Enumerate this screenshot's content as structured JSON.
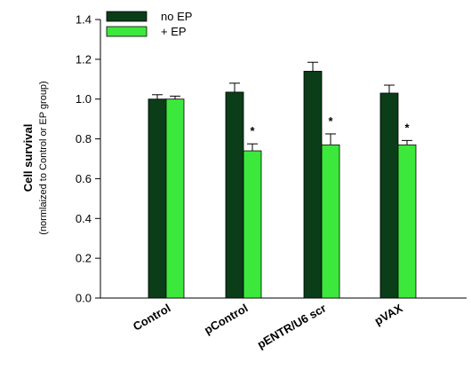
{
  "chart_data": {
    "type": "bar",
    "title": "",
    "xlabel": "",
    "ylabel": "Cell survival",
    "ylabel_sub": "(normlaized to Control or EP group)",
    "ylim": [
      0.0,
      1.4
    ],
    "yticks": [
      "0.0",
      "0.2",
      "0.4",
      "0.6",
      "0.8",
      "1.0",
      "1.2",
      "1.4"
    ],
    "categories": [
      "Control",
      "pControl",
      "pENTR/U6 scr",
      "pVAX"
    ],
    "series": [
      {
        "name": "no EP",
        "color": "#0a3d18",
        "values": [
          1.0,
          1.035,
          1.14,
          1.03
        ],
        "errors": [
          0.022,
          0.045,
          0.045,
          0.04
        ]
      },
      {
        "name": "+ EP",
        "color": "#3ce83c",
        "values": [
          1.0,
          0.74,
          0.77,
          0.77
        ],
        "errors": [
          0.015,
          0.035,
          0.055,
          0.022
        ]
      }
    ],
    "annotations": [
      {
        "series": 1,
        "category": 1,
        "text": "*"
      },
      {
        "series": 1,
        "category": 2,
        "text": "*"
      },
      {
        "series": 1,
        "category": 3,
        "text": "*"
      }
    ],
    "legend": "top-left",
    "grid": false
  }
}
